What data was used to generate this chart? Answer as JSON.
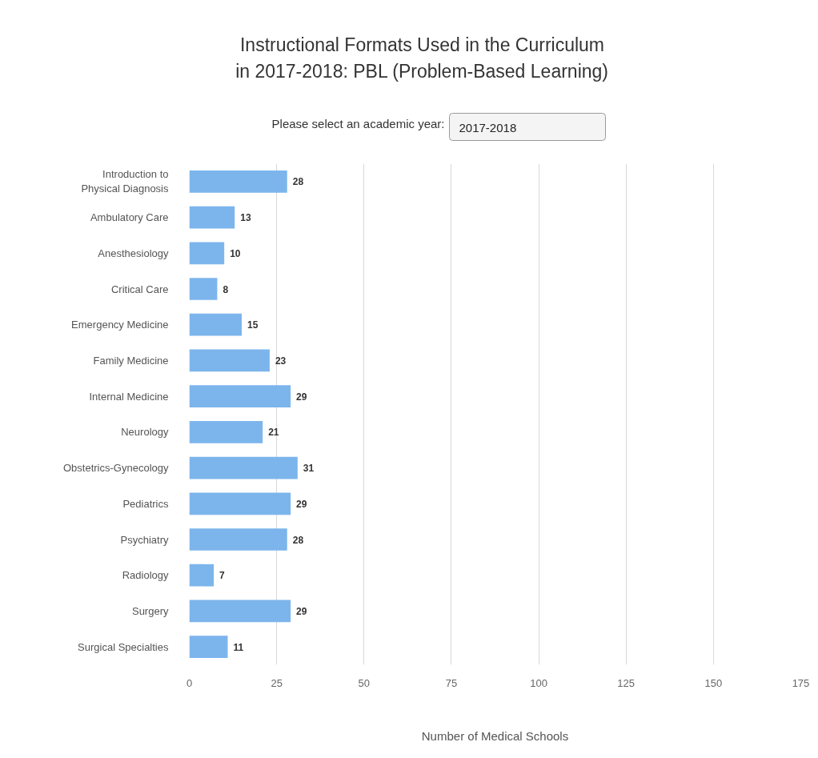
{
  "chart_data": {
    "type": "bar",
    "orientation": "horizontal",
    "title": "Instructional Formats Used in the Curriculum in 2017-2018: PBL (Problem-Based Learning)",
    "annotations": [
      "Please select an academic year:",
      "2017-2018"
    ],
    "categories": [
      "Introduction to Physical Diagnosis",
      "Ambulatory Care",
      "Anesthesiology",
      "Critical Care",
      "Emergency Medicine",
      "Family Medicine",
      "Internal Medicine",
      "Neurology",
      "Obstetrics-Gynecology",
      "Pediatrics",
      "Psychiatry",
      "Radiology",
      "Surgery",
      "Surgical Specialties"
    ],
    "values": [
      28,
      13,
      10,
      8,
      15,
      23,
      29,
      21,
      31,
      29,
      28,
      7,
      29,
      11
    ],
    "color": "#7cb5ec",
    "xlim": [
      0,
      175
    ],
    "xticks": [
      0,
      25,
      50,
      75,
      100,
      125,
      150,
      175
    ],
    "xlabel": "Number of Medical Schools",
    "grid": "x",
    "data_labels": true
  }
}
